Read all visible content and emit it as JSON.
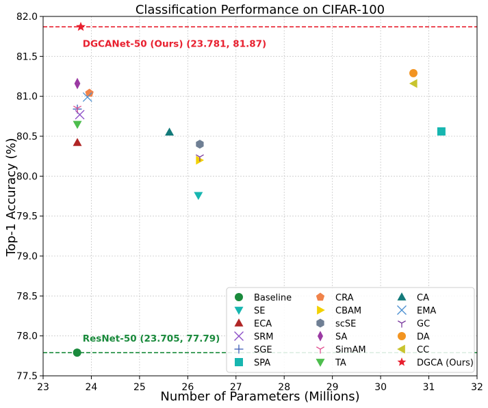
{
  "chart_data": {
    "type": "scatter",
    "title": "Classification Performance on CIFAR-100",
    "xlabel": "Number of Parameters (Millions)",
    "ylabel": "Top-1 Accuracy (%)",
    "xlim": [
      23,
      32
    ],
    "ylim": [
      77.5,
      82.0
    ],
    "xticks": [
      "23",
      "24",
      "25",
      "26",
      "27",
      "28",
      "29",
      "30",
      "31",
      "32"
    ],
    "yticks": [
      "77.5",
      "78.0",
      "78.5",
      "79.0",
      "79.5",
      "80.0",
      "80.5",
      "81.0",
      "81.5",
      "82.0"
    ],
    "grid": true,
    "legend_position": "lower-right",
    "reference_lines": [
      {
        "y": 81.87,
        "color": "#e8202f",
        "style": "dashed"
      },
      {
        "y": 77.79,
        "color": "#1a8a3c",
        "style": "dashed"
      }
    ],
    "annotations": [
      {
        "text": "DGCANet-50 (Ours) (23.781, 81.87)",
        "x": 23.82,
        "y": 81.66,
        "color": "#e8202f"
      },
      {
        "text": "ResNet-50 (23.705, 77.79)",
        "x": 23.82,
        "y": 77.97,
        "color": "#1a8a3c"
      }
    ],
    "series": [
      {
        "name": "Baseline",
        "marker": "circle",
        "color": "#1a8a3c",
        "x": 23.705,
        "y": 77.79
      },
      {
        "name": "SE",
        "marker": "triangle-down",
        "color": "#17b6b0",
        "x": 26.22,
        "y": 79.76
      },
      {
        "name": "ECA",
        "marker": "triangle-up",
        "color": "#b02626",
        "x": 23.71,
        "y": 80.42
      },
      {
        "name": "SRM",
        "marker": "x",
        "color": "#8b4cc7",
        "x": 23.76,
        "y": 80.77
      },
      {
        "name": "SGE",
        "marker": "plus",
        "color": "#3a5bb5",
        "x": 23.71,
        "y": 80.84
      },
      {
        "name": "SPA",
        "marker": "square",
        "color": "#17b6b0",
        "x": 31.26,
        "y": 80.56
      },
      {
        "name": "CRA",
        "marker": "pentagon",
        "color": "#f0834a",
        "x": 23.96,
        "y": 81.04
      },
      {
        "name": "CBAM",
        "marker": "triangle-right",
        "color": "#f2d100",
        "x": 26.24,
        "y": 80.2
      },
      {
        "name": "scSE",
        "marker": "hexagon",
        "color": "#6f7f94",
        "x": 26.25,
        "y": 80.4
      },
      {
        "name": "SA",
        "marker": "thin-diamond",
        "color": "#9b3aa3",
        "x": 23.71,
        "y": 81.16
      },
      {
        "name": "SimAM",
        "marker": "tri-down",
        "color": "#e04e8f",
        "x": 23.71,
        "y": 80.85
      },
      {
        "name": "TA",
        "marker": "triangle-down",
        "color": "#4dbd4d",
        "x": 23.71,
        "y": 80.65
      },
      {
        "name": "CA",
        "marker": "triangle-up",
        "color": "#137a7a",
        "x": 25.62,
        "y": 80.55
      },
      {
        "name": "EMA",
        "marker": "x",
        "color": "#4a8fd0",
        "x": 23.92,
        "y": 80.99
      },
      {
        "name": "GC",
        "marker": "tri-down",
        "color": "#7a3a9e",
        "x": 26.25,
        "y": 80.24
      },
      {
        "name": "DA",
        "marker": "circle",
        "color": "#f29421",
        "x": 30.68,
        "y": 81.29
      },
      {
        "name": "CC",
        "marker": "triangle-left",
        "color": "#c8c42e",
        "x": 30.69,
        "y": 81.16
      },
      {
        "name": "DGCA (Ours)",
        "marker": "star",
        "color": "#e8202f",
        "x": 23.781,
        "y": 81.87
      }
    ]
  }
}
